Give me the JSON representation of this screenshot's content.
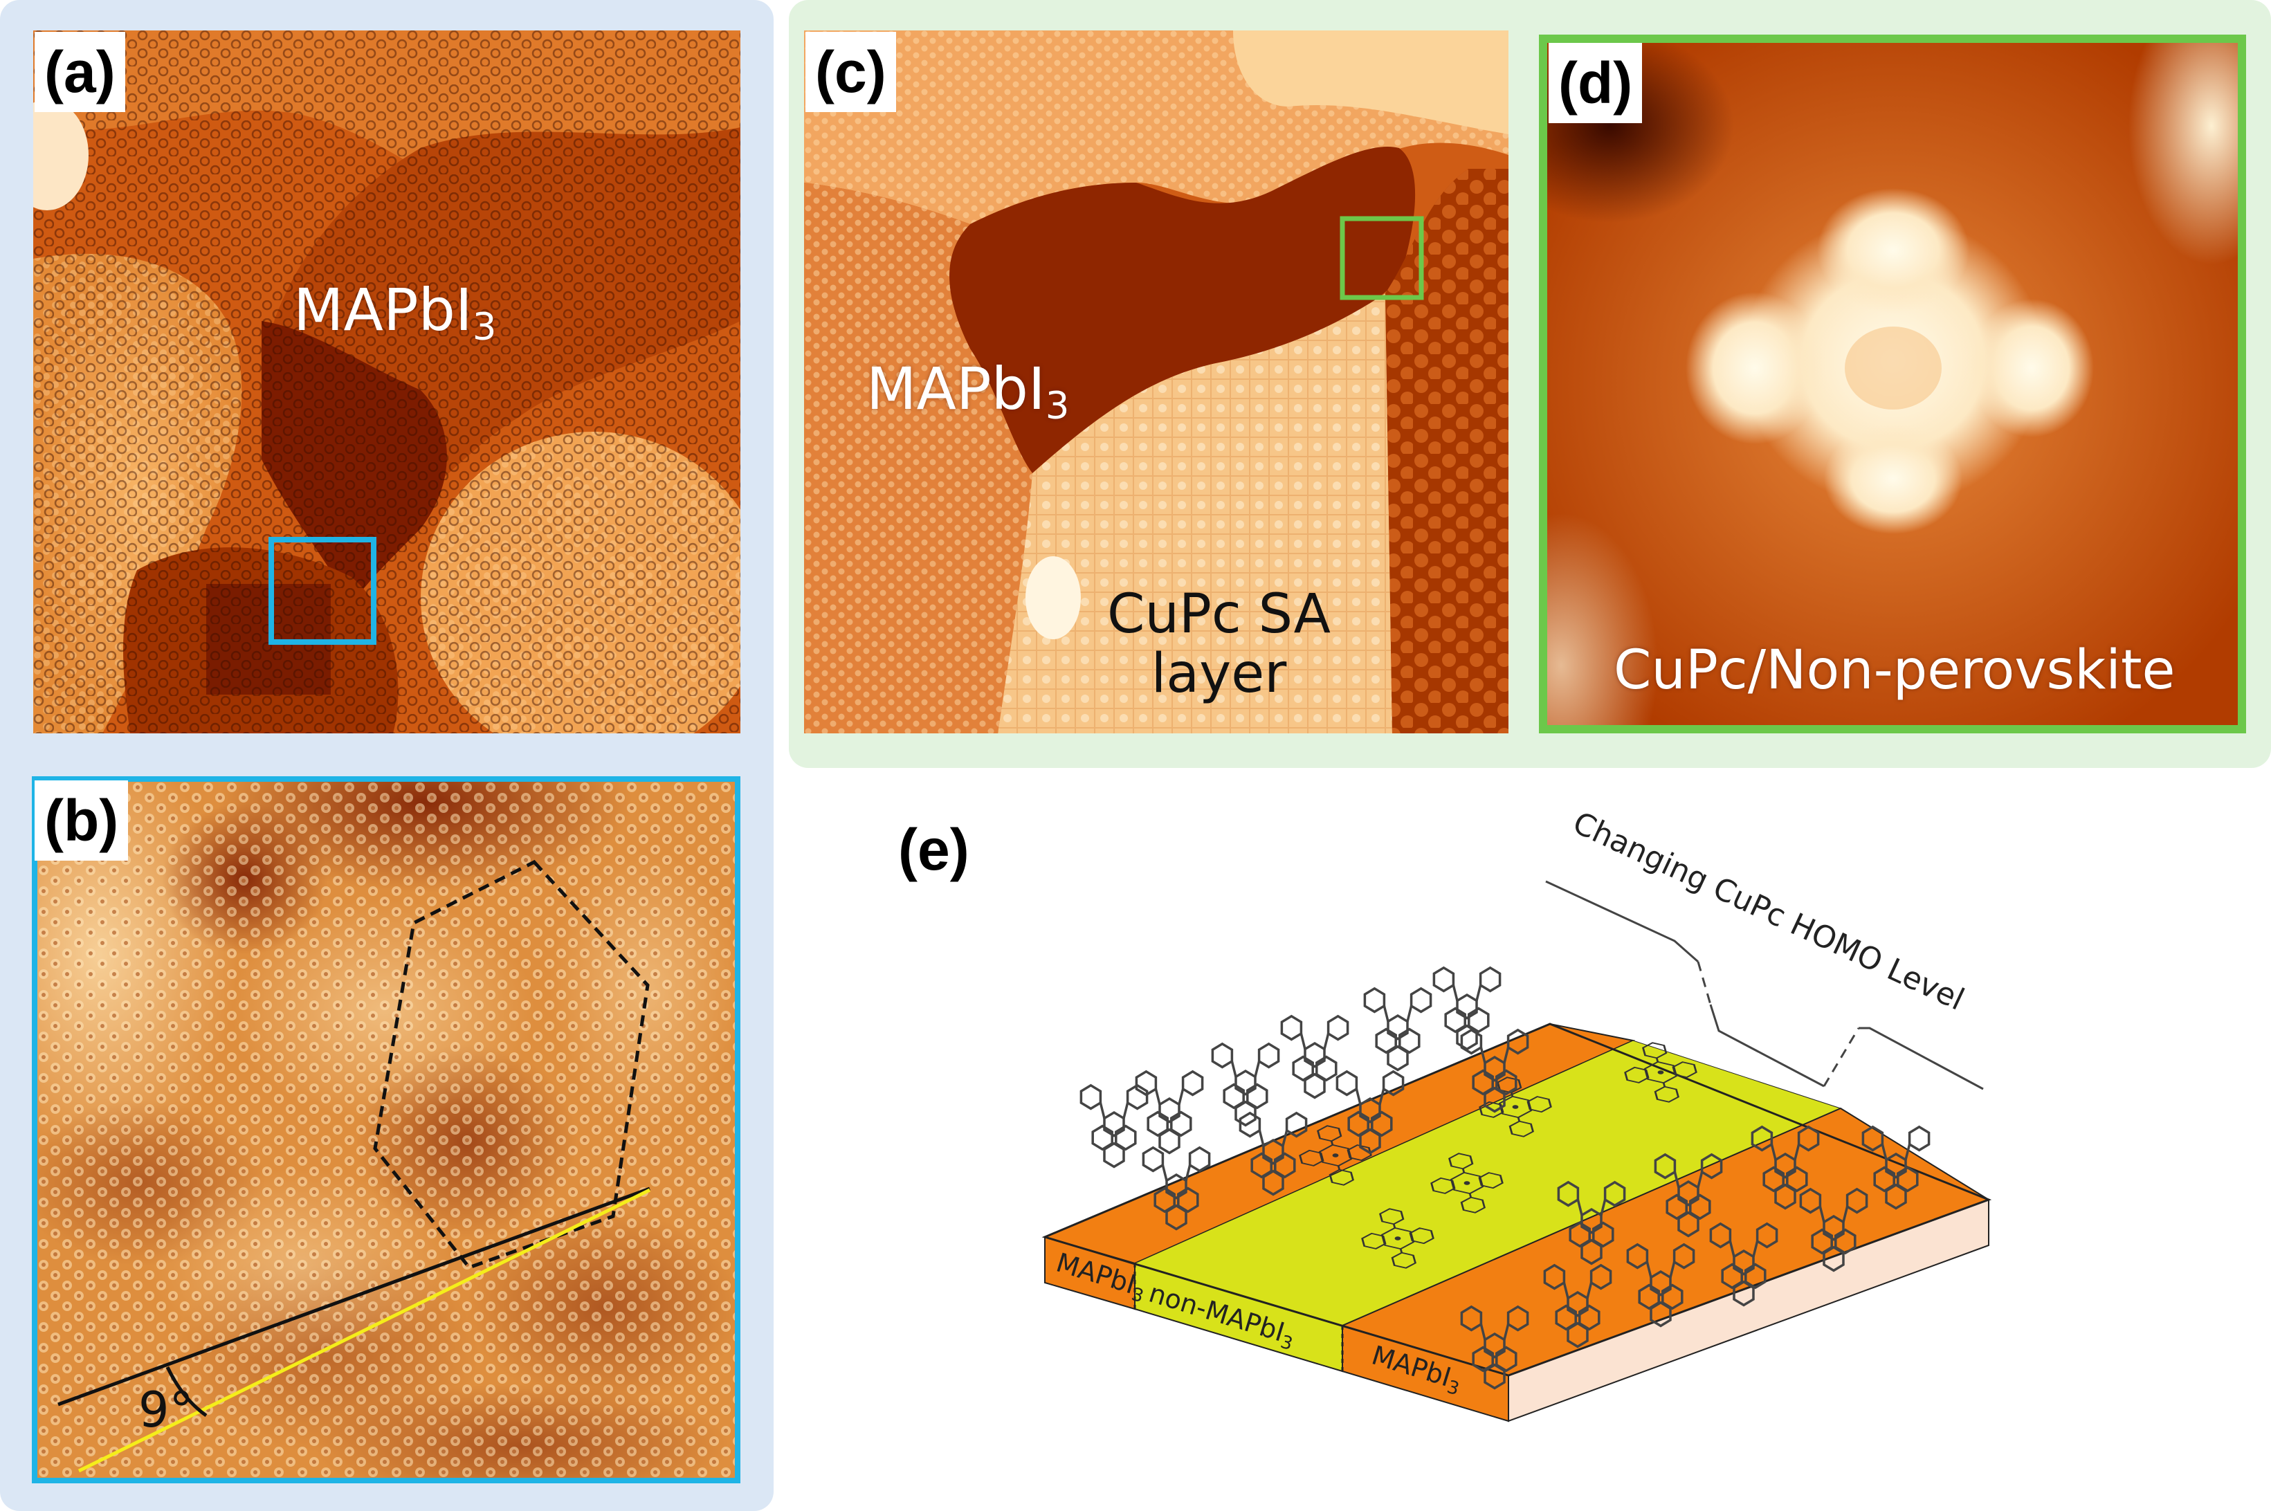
{
  "colors": {
    "panel_left_bg": "#dbe7f5",
    "panel_right_bg": "#e2f3df",
    "cyan_frame": "#1fb4e6",
    "green_frame": "#6cc84a",
    "stm_dark": "#8a2200",
    "stm_mid": "#cf5a10",
    "stm_bright": "#f7b35c",
    "orange_layer": "#f27f12",
    "yellow_layer": "#d8e21a",
    "yellow_line": "#f5ee1a"
  },
  "panels": {
    "a": {
      "label": "(a)",
      "material_main": "MAPbI",
      "material_sub": "3"
    },
    "b": {
      "label": "(b)",
      "angle_label": "9°"
    },
    "c": {
      "label": "(c)",
      "material_main": "MAPbI",
      "material_sub": "3",
      "layer_line1": "CuPc SA",
      "layer_line2": "layer"
    },
    "d": {
      "label": "(d)",
      "caption": "CuPc/Non-perovskite"
    },
    "e": {
      "label": "(e)",
      "homo_label": "Changing CuPc HOMO Level",
      "strip_left_main": "MAPbI",
      "strip_left_sub": "3",
      "strip_mid_main": "non-MAPbI",
      "strip_mid_sub": "3",
      "strip_right_main": "MAPbI",
      "strip_right_sub": "3"
    }
  }
}
